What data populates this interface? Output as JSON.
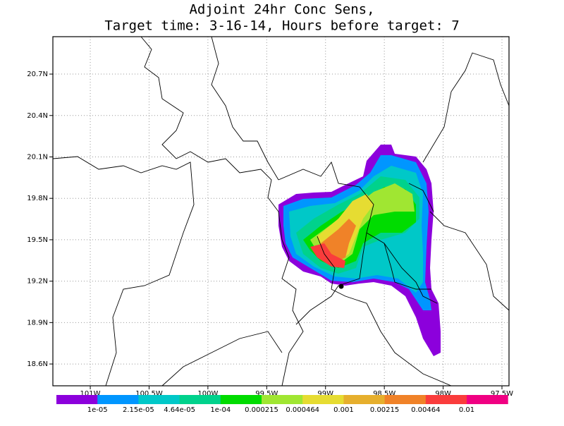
{
  "title": [
    "Adjoint 24hr Conc Sens,",
    "Target time: 3-16-14, Hours before target: 7"
  ],
  "map": {
    "xlim": [
      -101.318,
      -97.44
    ],
    "ylim": [
      18.442,
      20.971
    ],
    "xticks": [
      {
        "value": -101,
        "label": "101W"
      },
      {
        "value": -100.5,
        "label": "100.5W"
      },
      {
        "value": -100,
        "label": "100W"
      },
      {
        "value": -99.5,
        "label": "99.5W"
      },
      {
        "value": -99,
        "label": "99W"
      },
      {
        "value": -98.5,
        "label": "98.5W"
      },
      {
        "value": -98,
        "label": "98W"
      },
      {
        "value": -97.5,
        "label": "97.5W"
      }
    ],
    "yticks": [
      {
        "value": 18.6,
        "label": "18.6N"
      },
      {
        "value": 18.9,
        "label": "18.9N"
      },
      {
        "value": 19.2,
        "label": "19.2N"
      },
      {
        "value": 19.5,
        "label": "19.5N"
      },
      {
        "value": 19.8,
        "label": "19.8N"
      },
      {
        "value": 20.1,
        "label": "20.1N"
      },
      {
        "value": 20.4,
        "label": "20.4N"
      },
      {
        "value": 20.7,
        "label": "20.7N"
      }
    ],
    "grid": true
  },
  "colorbar": {
    "colors": [
      "#8c00dc",
      "#0096ff",
      "#00c8c8",
      "#00d28c",
      "#00dc00",
      "#a0e632",
      "#e6dc32",
      "#e6af2d",
      "#f08228",
      "#fa3c3c",
      "#f00082"
    ],
    "levels": [
      {
        "value": 1e-05,
        "label": "1e-05"
      },
      {
        "value": 2.15e-05,
        "label": "2.15e-05"
      },
      {
        "value": 4.64e-05,
        "label": "4.64e-05"
      },
      {
        "value": 0.0001,
        "label": "1e-04"
      },
      0.000215,
      0.000464,
      0.001,
      0.00215,
      0.00464,
      0.01
    ]
  }
}
